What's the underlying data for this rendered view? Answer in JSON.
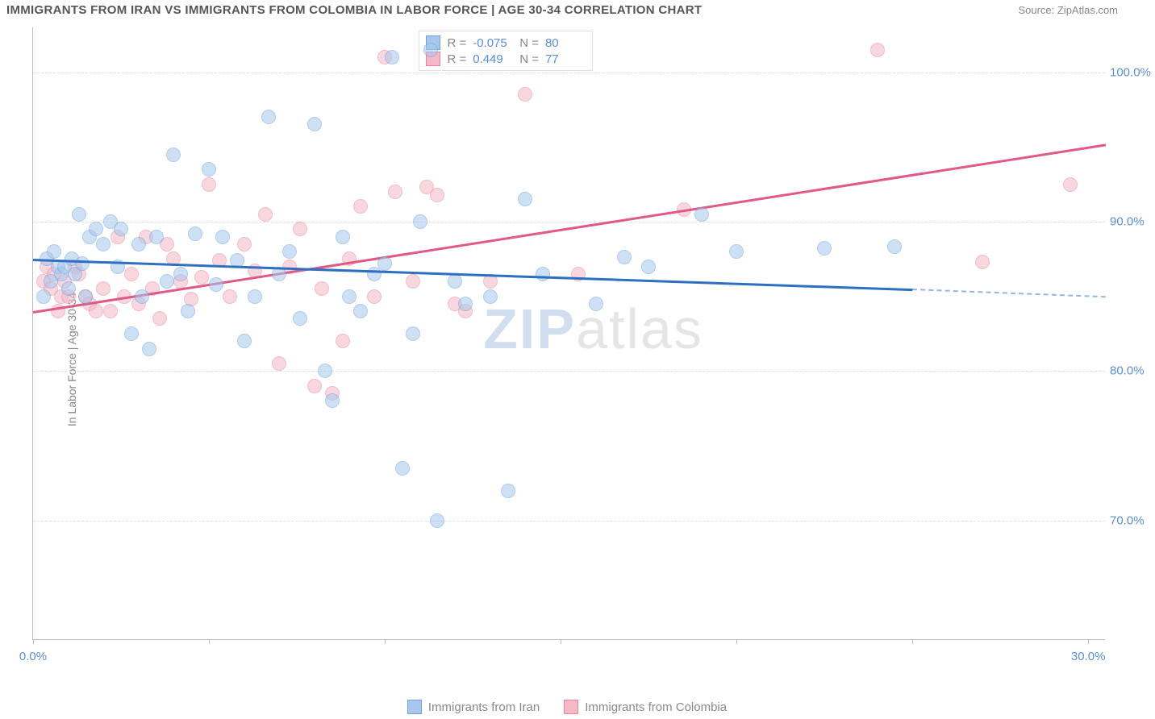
{
  "header": {
    "title": "IMMIGRANTS FROM IRAN VS IMMIGRANTS FROM COLOMBIA IN LABOR FORCE | AGE 30-34 CORRELATION CHART",
    "source": "Source: ZipAtlas.com"
  },
  "y_axis": {
    "label": "In Labor Force | Age 30-34",
    "ticks": [
      70.0,
      80.0,
      90.0,
      100.0
    ],
    "tick_labels": [
      "70.0%",
      "80.0%",
      "90.0%",
      "100.0%"
    ],
    "min": 62.0,
    "max": 103.0
  },
  "x_axis": {
    "ticks": [
      0.0,
      5.0,
      10.0,
      15.0,
      20.0,
      25.0,
      30.0
    ],
    "end_labels": {
      "left": "0.0%",
      "right": "30.0%"
    },
    "min": 0.0,
    "max": 30.5
  },
  "series": {
    "iran": {
      "label": "Immigrants from Iran",
      "fill": "#a7c7ec",
      "fill_alpha": 0.55,
      "stroke": "#6fa3dd",
      "line_color": "#2f6fc1",
      "marker_radius": 9,
      "R": "-0.075",
      "N": "80",
      "trend": {
        "x1": 0.0,
        "y1": 87.5,
        "x2": 25.0,
        "y2": 85.5,
        "dashed_ext_x": 30.5,
        "dashed_ext_y": 85.0
      },
      "points": [
        [
          0.3,
          85.0
        ],
        [
          0.4,
          87.5
        ],
        [
          0.5,
          86.0
        ],
        [
          0.6,
          88.0
        ],
        [
          0.7,
          87.0
        ],
        [
          0.8,
          86.5
        ],
        [
          0.9,
          87.0
        ],
        [
          1.0,
          85.5
        ],
        [
          1.1,
          87.5
        ],
        [
          1.2,
          86.5
        ],
        [
          1.3,
          90.5
        ],
        [
          1.4,
          87.2
        ],
        [
          1.5,
          85.0
        ],
        [
          1.6,
          89.0
        ],
        [
          1.8,
          89.5
        ],
        [
          2.0,
          88.5
        ],
        [
          2.2,
          90.0
        ],
        [
          2.4,
          87.0
        ],
        [
          2.5,
          89.5
        ],
        [
          2.8,
          82.5
        ],
        [
          3.0,
          88.5
        ],
        [
          3.1,
          85.0
        ],
        [
          3.3,
          81.5
        ],
        [
          3.5,
          89.0
        ],
        [
          3.8,
          86.0
        ],
        [
          4.0,
          94.5
        ],
        [
          4.2,
          86.5
        ],
        [
          4.4,
          84.0
        ],
        [
          4.6,
          89.2
        ],
        [
          5.0,
          93.5
        ],
        [
          5.2,
          85.8
        ],
        [
          5.4,
          89.0
        ],
        [
          5.8,
          87.4
        ],
        [
          6.0,
          82.0
        ],
        [
          6.3,
          85.0
        ],
        [
          6.7,
          97.0
        ],
        [
          7.0,
          86.5
        ],
        [
          7.3,
          88.0
        ],
        [
          7.6,
          83.5
        ],
        [
          8.0,
          96.5
        ],
        [
          8.3,
          80.0
        ],
        [
          8.5,
          78.0
        ],
        [
          8.8,
          89.0
        ],
        [
          9.0,
          85.0
        ],
        [
          9.3,
          84.0
        ],
        [
          9.7,
          86.5
        ],
        [
          10.0,
          87.2
        ],
        [
          10.2,
          101.0
        ],
        [
          10.5,
          73.5
        ],
        [
          10.8,
          82.5
        ],
        [
          11.0,
          90.0
        ],
        [
          11.3,
          101.5
        ],
        [
          11.5,
          70.0
        ],
        [
          12.0,
          86.0
        ],
        [
          12.3,
          84.5
        ],
        [
          13.0,
          85.0
        ],
        [
          13.5,
          72.0
        ],
        [
          14.0,
          91.5
        ],
        [
          14.5,
          86.5
        ],
        [
          16.0,
          84.5
        ],
        [
          16.8,
          87.6
        ],
        [
          17.5,
          87.0
        ],
        [
          19.0,
          90.5
        ],
        [
          20.0,
          88.0
        ],
        [
          22.5,
          88.2
        ],
        [
          24.5,
          88.3
        ]
      ]
    },
    "colombia": {
      "label": "Immigrants from Colombia",
      "fill": "#f4b8c6",
      "fill_alpha": 0.55,
      "stroke": "#e786a1",
      "line_color": "#e05a85",
      "marker_radius": 9,
      "R": "0.449",
      "N": "77",
      "trend": {
        "x1": 0.0,
        "y1": 84.0,
        "x2": 30.5,
        "y2": 95.2
      },
      "points": [
        [
          0.3,
          86.0
        ],
        [
          0.4,
          87.0
        ],
        [
          0.5,
          85.5
        ],
        [
          0.6,
          86.5
        ],
        [
          0.7,
          84.0
        ],
        [
          0.8,
          85.0
        ],
        [
          0.9,
          86.0
        ],
        [
          1.0,
          85.0
        ],
        [
          1.2,
          87.0
        ],
        [
          1.3,
          86.5
        ],
        [
          1.5,
          85.0
        ],
        [
          1.6,
          84.5
        ],
        [
          1.8,
          84.0
        ],
        [
          2.0,
          85.5
        ],
        [
          2.2,
          84.0
        ],
        [
          2.4,
          89.0
        ],
        [
          2.6,
          85.0
        ],
        [
          2.8,
          86.5
        ],
        [
          3.0,
          84.5
        ],
        [
          3.2,
          89.0
        ],
        [
          3.4,
          85.5
        ],
        [
          3.6,
          83.5
        ],
        [
          3.8,
          88.5
        ],
        [
          4.0,
          87.5
        ],
        [
          4.2,
          86.0
        ],
        [
          4.5,
          84.8
        ],
        [
          4.8,
          86.3
        ],
        [
          5.0,
          92.5
        ],
        [
          5.3,
          87.4
        ],
        [
          5.6,
          85.0
        ],
        [
          6.0,
          88.5
        ],
        [
          6.3,
          86.7
        ],
        [
          6.6,
          90.5
        ],
        [
          7.0,
          80.5
        ],
        [
          7.3,
          87.0
        ],
        [
          7.6,
          89.5
        ],
        [
          8.0,
          79.0
        ],
        [
          8.2,
          85.5
        ],
        [
          8.5,
          78.5
        ],
        [
          8.8,
          82.0
        ],
        [
          9.0,
          87.5
        ],
        [
          9.3,
          91.0
        ],
        [
          9.7,
          85.0
        ],
        [
          10.0,
          101.0
        ],
        [
          10.3,
          92.0
        ],
        [
          10.8,
          86.0
        ],
        [
          11.2,
          92.3
        ],
        [
          11.5,
          91.8
        ],
        [
          12.0,
          84.5
        ],
        [
          12.3,
          84.0
        ],
        [
          13.0,
          86.0
        ],
        [
          14.0,
          98.5
        ],
        [
          15.5,
          86.5
        ],
        [
          18.5,
          90.8
        ],
        [
          24.0,
          101.5
        ],
        [
          27.0,
          87.3
        ],
        [
          29.5,
          92.5
        ]
      ]
    }
  },
  "legend_top": {
    "R_label": "R =",
    "N_label": "N ="
  },
  "watermark": {
    "z": "ZIP",
    "rest": "atlas"
  },
  "chart_style": {
    "background": "#ffffff",
    "grid_color": "#dddddd",
    "axis_color": "#bbbbbb",
    "tick_text_color": "#5a8fd6",
    "label_text_color": "#888888"
  }
}
